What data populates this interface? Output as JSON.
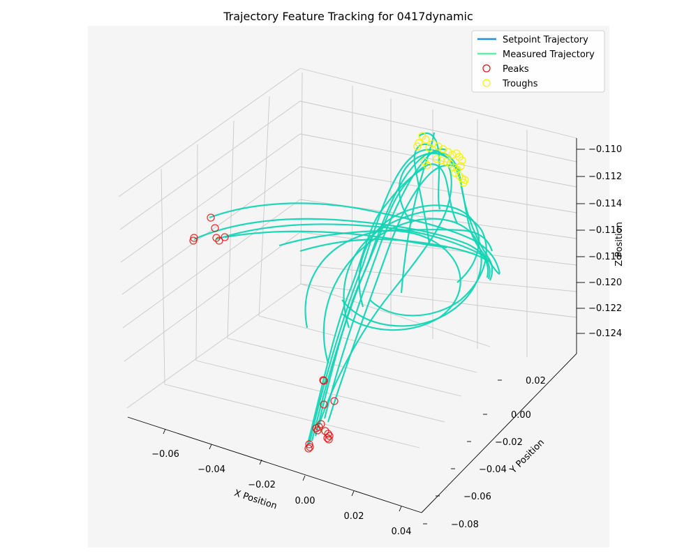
{
  "chart_data": {
    "type": "line3d",
    "title": "Trajectory Feature Tracking for 0417dynamic",
    "xlabel": "X Position",
    "ylabel": "Y Position",
    "zlabel": "Z Position",
    "x_ticks": [
      "−0.06",
      "−0.04",
      "−0.02",
      "0.00",
      "0.02",
      "0.04"
    ],
    "y_ticks": [
      "−0.08",
      "−0.06",
      "−0.04",
      "−0.02",
      "0.00",
      "0.02"
    ],
    "z_ticks": [
      "−0.110",
      "−0.112",
      "−0.114",
      "−0.116",
      "−0.118",
      "−0.120",
      "−0.122",
      "−0.124"
    ],
    "xlim": [
      -0.07,
      0.04
    ],
    "ylim": [
      -0.08,
      0.03
    ],
    "zlim": [
      -0.125,
      -0.109
    ],
    "grid": true,
    "legend": {
      "position": "top-right",
      "entries": [
        {
          "label": "Setpoint Trajectory",
          "style": "line",
          "color": "#1f8fe0"
        },
        {
          "label": "Measured Trajectory",
          "style": "line",
          "color": "#5ef0a8"
        },
        {
          "label": "Peaks",
          "style": "circle",
          "color": "#e01010"
        },
        {
          "label": "Troughs",
          "style": "circle",
          "color": "#f5f500"
        }
      ]
    },
    "series": [
      {
        "name": "Measured Trajectory",
        "color": "#14d4b4",
        "note": "many overlapping loops"
      },
      {
        "name": "Peaks",
        "color": "#e01010"
      },
      {
        "name": "Troughs",
        "color": "#f5f500"
      }
    ]
  }
}
